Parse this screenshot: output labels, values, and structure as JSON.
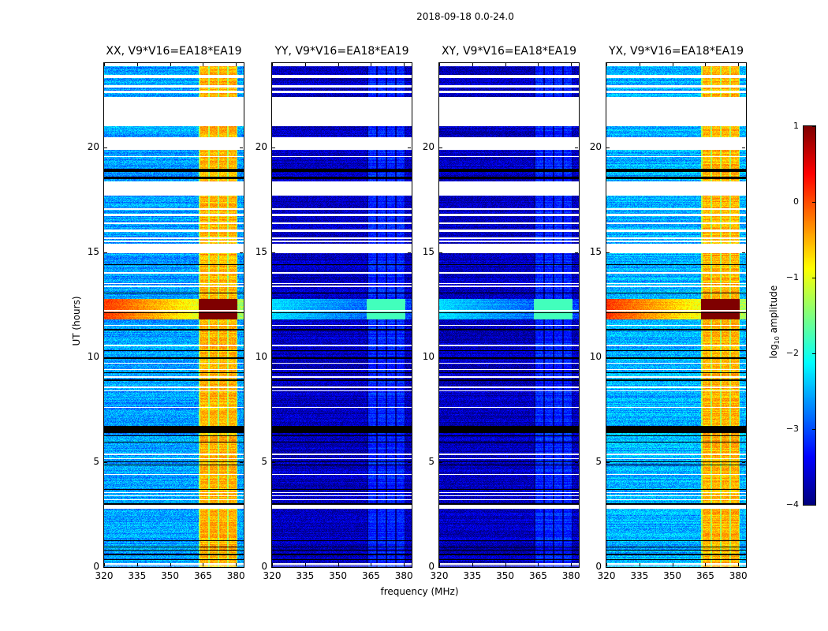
{
  "figure": {
    "suptitle": "2018-09-18 0.0-24.0",
    "xlabel": "frequency (MHz)",
    "ylabel": "UT (hours)",
    "colorbar": {
      "label_prefix": "log",
      "label_sub": "10",
      "label_suffix": " amplitude",
      "ticks": [
        "1",
        "0",
        "−1",
        "−2",
        "−3",
        "−4"
      ],
      "range": [
        -4,
        1
      ],
      "colormap": "jet"
    }
  },
  "chart_data": {
    "type": "heatmap",
    "title": "2018-09-18 0.0-24.0",
    "xlabel": "frequency (MHz)",
    "ylabel": "UT (hours)",
    "zlabel": "log10 amplitude",
    "xlim": [
      320,
      383.5
    ],
    "ylim": [
      0,
      24
    ],
    "zlim": [
      -4,
      1
    ],
    "xticks": [
      320,
      335,
      350,
      365,
      380
    ],
    "xtick_labels": [
      "320",
      "335",
      "350",
      "365",
      "380"
    ],
    "yticks": [
      0,
      5,
      10,
      15,
      20
    ],
    "ytick_labels": [
      "0",
      "5",
      "10",
      "15",
      "20"
    ],
    "flagged_white_hours": [
      [
        21.0,
        22.4
      ],
      [
        19.9,
        20.5
      ],
      [
        17.7,
        18.4
      ],
      [
        14.95,
        15.4
      ],
      [
        2.8,
        3.0
      ],
      [
        23.85,
        24.0
      ],
      [
        23.3,
        23.45
      ],
      [
        22.85,
        22.95
      ],
      [
        22.6,
        22.7
      ],
      [
        21.6,
        21.7
      ],
      [
        21.35,
        21.42
      ],
      [
        19.55,
        19.6
      ],
      [
        17.05,
        17.12
      ],
      [
        16.75,
        16.85
      ],
      [
        16.35,
        16.45
      ],
      [
        16.0,
        16.08
      ],
      [
        15.65,
        15.72
      ],
      [
        15.5,
        15.58
      ],
      [
        14.0,
        14.05
      ],
      [
        13.5,
        13.55
      ],
      [
        13.35,
        13.42
      ],
      [
        12.2,
        12.25
      ],
      [
        11.5,
        11.55
      ],
      [
        10.55,
        10.62
      ],
      [
        9.7,
        9.75
      ],
      [
        9.4,
        9.45
      ],
      [
        9.05,
        9.1
      ],
      [
        8.55,
        8.62
      ],
      [
        8.4,
        8.45
      ],
      [
        7.6,
        7.65
      ],
      [
        5.35,
        5.42
      ],
      [
        5.15,
        5.22
      ],
      [
        4.4,
        4.45
      ],
      [
        3.55,
        3.6
      ],
      [
        3.4,
        3.45
      ],
      [
        3.2,
        3.25
      ],
      [
        0.15,
        0.22
      ],
      [
        0.05,
        0.1
      ]
    ],
    "flagged_black_hours": [
      [
        6.4,
        6.75
      ],
      [
        18.85,
        19.0
      ],
      [
        18.5,
        18.6
      ],
      [
        14.4,
        14.45
      ],
      [
        13.05,
        13.1
      ],
      [
        12.1,
        12.15
      ],
      [
        11.3,
        11.35
      ],
      [
        10.3,
        10.35
      ],
      [
        9.95,
        10.0
      ],
      [
        9.25,
        9.3
      ],
      [
        8.9,
        8.95
      ],
      [
        6.25,
        6.3
      ],
      [
        5.95,
        6.0
      ],
      [
        5.0,
        5.05
      ],
      [
        4.85,
        4.9
      ],
      [
        3.7,
        3.75
      ],
      [
        3.0,
        3.05
      ],
      [
        1.25,
        1.3
      ],
      [
        0.95,
        1.0
      ],
      [
        0.8,
        0.85
      ],
      [
        0.6,
        0.65
      ],
      [
        0.35,
        0.4
      ]
    ],
    "bright_band_MHz": [
      363,
      380.5
    ],
    "rfi_peak_hours": [
      11.8,
      12.8
    ],
    "series": [
      {
        "name": "XX, V9*V16=EA18*EA19",
        "background_log10": -2.6,
        "band_log10": -0.5,
        "peak_log10": 1.0
      },
      {
        "name": "YY, V9*V16=EA18*EA19",
        "background_log10": -3.7,
        "band_log10": -3.2,
        "peak_log10": -1.8
      },
      {
        "name": "XY, V9*V16=EA18*EA19",
        "background_log10": -3.7,
        "band_log10": -3.2,
        "peak_log10": -1.8
      },
      {
        "name": "YX, V9*V16=EA18*EA19",
        "background_log10": -2.5,
        "band_log10": -0.5,
        "peak_log10": 1.0
      }
    ]
  }
}
